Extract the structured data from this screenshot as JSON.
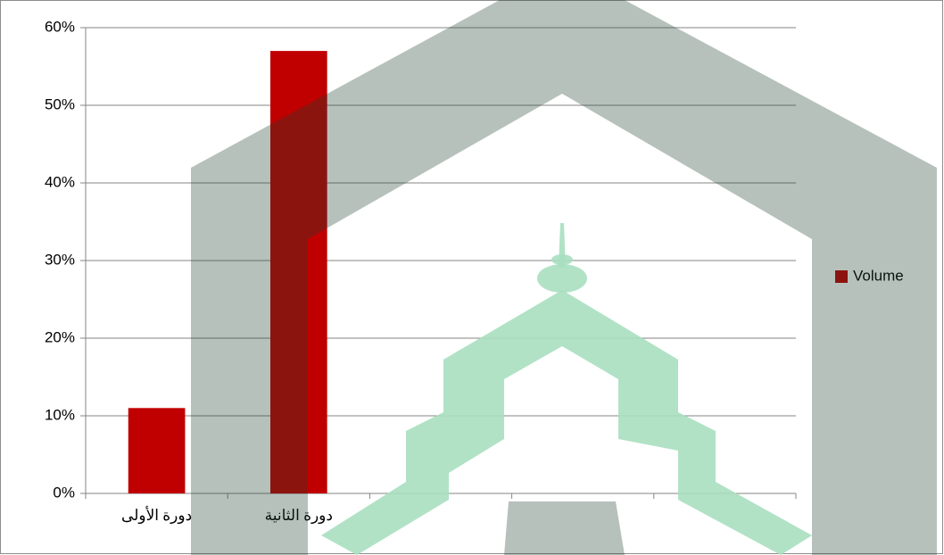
{
  "chart_data": {
    "type": "bar",
    "categories": [
      "دورة الأولى",
      "دورة الثانية",
      null,
      null,
      null
    ],
    "series": [
      {
        "name": "Volume",
        "color": "#c00000",
        "values": [
          11,
          57,
          null,
          null,
          null
        ]
      }
    ],
    "ylim": [
      0,
      60
    ],
    "yticks": [
      {
        "value": 0,
        "label": "0%"
      },
      {
        "value": 10,
        "label": "10%"
      },
      {
        "value": 20,
        "label": "20%"
      },
      {
        "value": 30,
        "label": "30%"
      },
      {
        "value": 40,
        "label": "40%"
      },
      {
        "value": 50,
        "label": "50%"
      },
      {
        "value": 60,
        "label": "60%"
      }
    ],
    "grid": true,
    "legend": "right"
  }
}
